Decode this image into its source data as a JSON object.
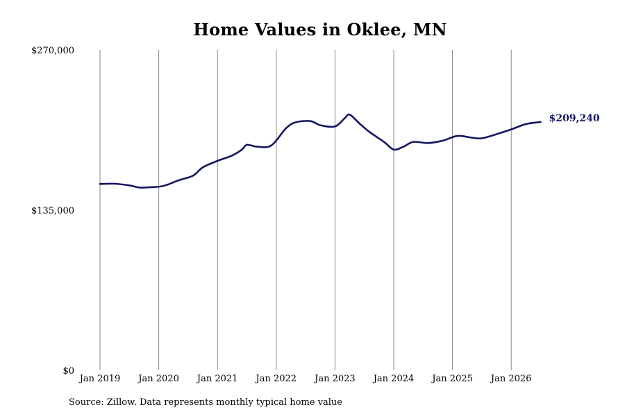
{
  "title": "Home Values in Oklee, MN",
  "source_note": "Source: Zillow. Data represents monthly typical home value",
  "colors": {
    "line": "#141660",
    "grid": "#888888",
    "text": "#000000"
  },
  "chart_data": {
    "type": "line",
    "title": "Home Values in Oklee, MN",
    "xlabel": "",
    "ylabel": "",
    "ylim": [
      0,
      270000
    ],
    "yticks": [
      0,
      135000,
      270000
    ],
    "ytick_labels": [
      "$0",
      "$135,000",
      "$270,000"
    ],
    "xlim": [
      "2019-01",
      "2026-08"
    ],
    "xticks": [
      "2019-01",
      "2020-01",
      "2021-01",
      "2022-01",
      "2023-01",
      "2024-01",
      "2025-01",
      "2026-01"
    ],
    "xtick_labels": [
      "Jan 2019",
      "Jan 2020",
      "Jan 2021",
      "Jan 2022",
      "Jan 2023",
      "Jan 2024",
      "Jan 2025",
      "Jan 2026"
    ],
    "grid": "vertical",
    "end_label": "$209,240",
    "series": [
      {
        "points": [
          [
            "2019-01",
            157000
          ],
          [
            "2019-04",
            157200
          ],
          [
            "2019-07",
            155800
          ],
          [
            "2019-09",
            154000
          ],
          [
            "2019-11",
            154200
          ],
          [
            "2020-02",
            155400
          ],
          [
            "2020-05",
            160000
          ],
          [
            "2020-08",
            164000
          ],
          [
            "2020-10",
            171000
          ],
          [
            "2021-01",
            176500
          ],
          [
            "2021-04",
            181000
          ],
          [
            "2021-06",
            186000
          ],
          [
            "2021-07",
            190000
          ],
          [
            "2021-09",
            188500
          ],
          [
            "2021-12",
            189500
          ],
          [
            "2022-03",
            204000
          ],
          [
            "2022-05",
            209000
          ],
          [
            "2022-08",
            210000
          ],
          [
            "2022-10",
            206500
          ],
          [
            "2023-01",
            205500
          ],
          [
            "2023-03",
            212500
          ],
          [
            "2023-04",
            215500
          ],
          [
            "2023-06",
            208000
          ],
          [
            "2023-08",
            201000
          ],
          [
            "2023-11",
            192500
          ],
          [
            "2024-01",
            186000
          ],
          [
            "2024-03",
            188500
          ],
          [
            "2024-05",
            192500
          ],
          [
            "2024-08",
            191500
          ],
          [
            "2024-11",
            193500
          ],
          [
            "2025-02",
            197500
          ],
          [
            "2025-05",
            196000
          ],
          [
            "2025-07",
            195500
          ],
          [
            "2025-10",
            199000
          ],
          [
            "2026-01",
            203000
          ],
          [
            "2026-04",
            207500
          ],
          [
            "2026-07",
            209240
          ]
        ]
      }
    ]
  }
}
